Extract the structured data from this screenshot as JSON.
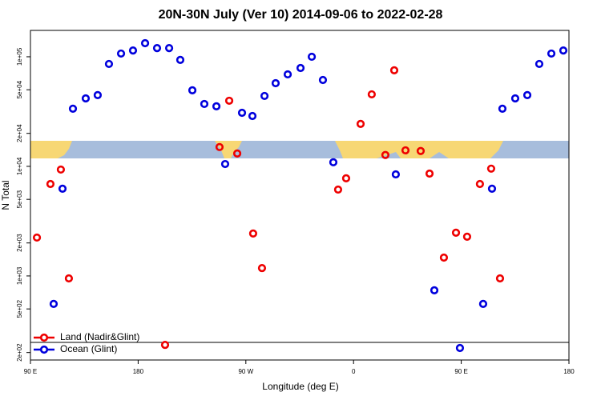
{
  "chart_data": {
    "type": "scatter",
    "title": "20N-30N July (Ver 10)   2014-09-06 to 2022-02-28",
    "x_label": "Longitude (deg E)",
    "y_label": "N Total",
    "y_log": true,
    "legend": "bottom-left",
    "xlim": [
      90,
      540
    ],
    "ylim": [
      171,
      174000
    ],
    "xticks": [
      {
        "value": 90,
        "label": "90 E"
      },
      180,
      {
        "value": 270,
        "label": "90 W"
      },
      {
        "value": 360,
        "label": "0"
      },
      {
        "value": 450,
        "label": "90 E"
      },
      180
    ],
    "yticks": [
      {
        "value": 200,
        "label": "2e+02"
      },
      {
        "value": 500,
        "label": "5e+02"
      },
      {
        "value": 1000,
        "label": "1e+03"
      },
      {
        "value": 2000,
        "label": "2e+03"
      },
      {
        "value": 5000,
        "label": "5e+03"
      },
      {
        "value": 10000,
        "label": "1e+04"
      },
      {
        "value": 20000,
        "label": "2e+04"
      },
      {
        "value": 50000,
        "label": "5e+04"
      },
      {
        "value": 100000,
        "label": "1e+05"
      }
    ],
    "series": [
      {
        "name": "Land (Nadir&Glint)",
        "color": "#ee0000",
        "x": [
          95.4,
          106.7,
          115.4,
          122.1,
          202.5,
          248,
          256.1,
          262.8,
          276.1,
          283.5,
          347.1,
          353.8,
          365.9,
          375.2,
          386.6,
          394,
          403.4,
          416.1,
          423.5,
          435.5,
          445.6,
          454.9,
          465.6,
          475,
          482.4
        ],
        "values": [
          2240,
          6900,
          9350,
          950,
          235,
          15000,
          39700,
          13100,
          2440,
          1180,
          6140,
          7780,
          24400,
          45400,
          12700,
          75200,
          14000,
          13800,
          8590,
          1470,
          2480,
          2280,
          6900,
          9530,
          950
        ]
      },
      {
        "name": "Ocean (Glint)",
        "color": "#0000dd",
        "x": [
          109.4,
          116.8,
          125.5,
          136.2,
          146.2,
          155.6,
          165.7,
          175.7,
          185.8,
          195.8,
          205.9,
          215.2,
          225.3,
          235.3,
          245.4,
          252.7,
          266.8,
          275.5,
          285.6,
          294.9,
          305,
          315.7,
          325.1,
          334.4,
          343.1,
          395.3,
          427.5,
          448.9,
          468.3,
          475.7,
          484.4,
          495.1,
          505.2,
          515.2,
          525.3,
          535.3
        ],
        "values": [
          556,
          6250,
          33600,
          41700,
          44700,
          86000,
          107000,
          114000,
          133000,
          120000,
          120000,
          93600,
          49400,
          37100,
          35300,
          10500,
          30800,
          28800,
          43900,
          57400,
          69100,
          79000,
          100000,
          61400,
          10900,
          8450,
          740,
          220,
          556,
          6250,
          33600,
          41700,
          44700,
          86000,
          107000,
          114000
        ]
      }
    ]
  }
}
